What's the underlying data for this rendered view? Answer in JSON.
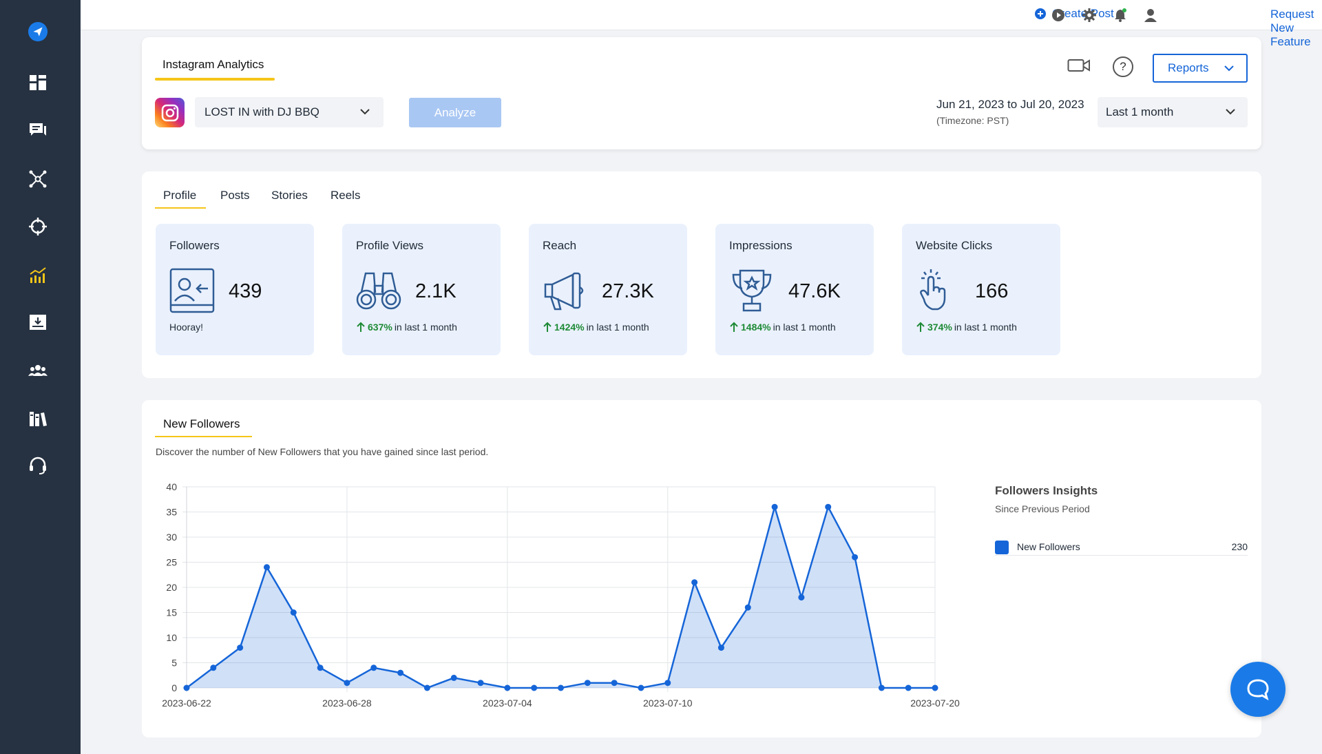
{
  "topbar": {
    "create_post": "Create Post",
    "request_feature": "Request New Feature",
    "accent": "#1565d8"
  },
  "header": {
    "tab": "Instagram Analytics",
    "account": "LOST IN with DJ BBQ",
    "analyze_label": "Analyze",
    "reports_label": "Reports",
    "date_range": "Jun 21, 2023 to Jul 20, 2023",
    "timezone": "(Timezone: PST)",
    "period": "Last 1 month"
  },
  "metric_tabs": [
    "Profile",
    "Posts",
    "Stories",
    "Reels"
  ],
  "metrics": [
    {
      "title": "Followers",
      "value": "439",
      "icon": "followers-icon",
      "note": "Hooray!",
      "pct": "",
      "suffix": ""
    },
    {
      "title": "Profile Views",
      "value": "2.1K",
      "icon": "binoculars-icon",
      "note": "",
      "pct": "637%",
      "suffix": "in last 1 month"
    },
    {
      "title": "Reach",
      "value": "27.3K",
      "icon": "megaphone-icon",
      "note": "",
      "pct": "1424%",
      "suffix": "in last 1 month"
    },
    {
      "title": "Impressions",
      "value": "47.6K",
      "icon": "trophy-icon",
      "note": "",
      "pct": "1484%",
      "suffix": "in last 1 month"
    },
    {
      "title": "Website Clicks",
      "value": "166",
      "icon": "click-hand-icon",
      "note": "",
      "pct": "374%",
      "suffix": "in last 1 month"
    }
  ],
  "chart_section": {
    "tab": "New Followers",
    "description": "Discover the number of New Followers that you have gained since last period.",
    "insights_title": "Followers Insights",
    "insights_sub": "Since Previous Period",
    "insights_series": "New Followers",
    "insights_value": "230"
  },
  "chart_data": {
    "type": "area",
    "ylim": [
      0,
      40
    ],
    "yticks": [
      0,
      5,
      10,
      15,
      20,
      25,
      30,
      35,
      40
    ],
    "x_tick_labels": [
      "2023-06-22",
      "2023-06-28",
      "2023-07-04",
      "2023-07-10",
      "2023-07-20"
    ],
    "x_tick_index": [
      0,
      6,
      12,
      18,
      28
    ],
    "x": [
      "2023-06-22",
      "2023-06-23",
      "2023-06-24",
      "2023-06-25",
      "2023-06-26",
      "2023-06-27",
      "2023-06-28",
      "2023-06-29",
      "2023-06-30",
      "2023-07-01",
      "2023-07-02",
      "2023-07-03",
      "2023-07-04",
      "2023-07-05",
      "2023-07-06",
      "2023-07-07",
      "2023-07-08",
      "2023-07-09",
      "2023-07-10",
      "2023-07-11",
      "2023-07-12",
      "2023-07-13",
      "2023-07-14",
      "2023-07-15",
      "2023-07-16",
      "2023-07-17",
      "2023-07-18",
      "2023-07-19",
      "2023-07-20"
    ],
    "series": [
      {
        "name": "New Followers",
        "color": "#1565d8",
        "values": [
          0,
          4,
          8,
          24,
          15,
          4,
          1,
          4,
          3,
          0,
          2,
          1,
          0,
          0,
          0,
          1,
          1,
          0,
          1,
          21,
          8,
          16,
          36,
          18,
          36,
          26,
          0,
          0,
          0
        ]
      }
    ],
    "grid": true
  }
}
